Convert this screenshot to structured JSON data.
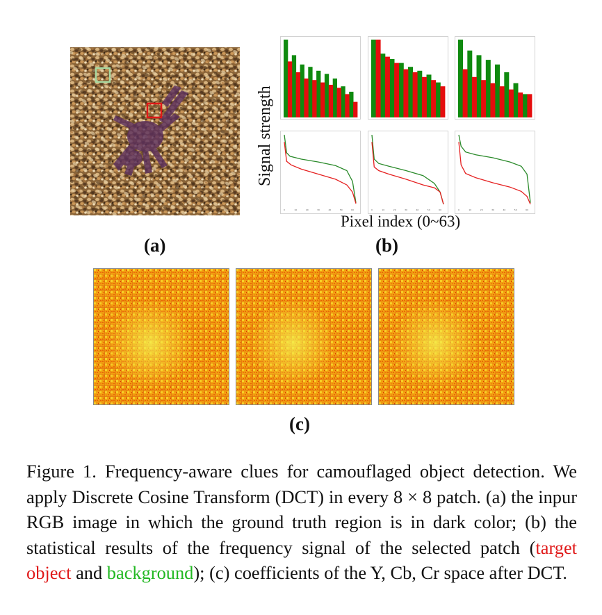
{
  "labels": {
    "a": "(a)",
    "b": "(b)",
    "c": "(c)"
  },
  "axes": {
    "y": "Signal strength",
    "x": "Pixel index (0~63)"
  },
  "colors": {
    "target": "#e01818",
    "background": "#22b822",
    "bar_green": "#0f8a0f",
    "bar_red": "#e50d0d",
    "line_green": "#2a8a2a",
    "line_red": "#e52020"
  },
  "chart_data": [
    {
      "type": "bar",
      "series": [
        {
          "name": "background",
          "values": [
            1.0,
            0.8,
            0.68,
            0.65,
            0.6,
            0.56,
            0.5,
            0.4,
            0.33
          ]
        },
        {
          "name": "target object",
          "values": [
            0.72,
            0.58,
            0.5,
            0.48,
            0.45,
            0.42,
            0.38,
            0.3,
            0.2
          ]
        }
      ]
    },
    {
      "type": "bar",
      "series": [
        {
          "name": "background",
          "values": [
            1.0,
            0.82,
            0.75,
            0.7,
            0.65,
            0.6,
            0.55,
            0.45
          ]
        },
        {
          "name": "target object",
          "values": [
            1.0,
            0.78,
            0.7,
            0.62,
            0.58,
            0.52,
            0.48,
            0.4
          ]
        }
      ]
    },
    {
      "type": "bar",
      "series": [
        {
          "name": "background",
          "values": [
            1.0,
            0.86,
            0.8,
            0.74,
            0.68,
            0.58,
            0.44,
            0.3
          ]
        },
        {
          "name": "target object",
          "values": [
            0.62,
            0.52,
            0.48,
            0.44,
            0.4,
            0.36,
            0.32,
            0.3
          ]
        }
      ]
    },
    {
      "type": "line",
      "x_ticks": [
        "0",
        "10",
        "20",
        "30",
        "40",
        "50",
        "60"
      ],
      "series": [
        {
          "name": "background",
          "values": [
            [
              0,
              1.0
            ],
            [
              2,
              0.75
            ],
            [
              5,
              0.7
            ],
            [
              15,
              0.66
            ],
            [
              30,
              0.62
            ],
            [
              45,
              0.57
            ],
            [
              55,
              0.5
            ],
            [
              60,
              0.35
            ],
            [
              63,
              0.05
            ]
          ]
        },
        {
          "name": "target object",
          "values": [
            [
              0,
              0.9
            ],
            [
              2,
              0.63
            ],
            [
              6,
              0.58
            ],
            [
              15,
              0.52
            ],
            [
              30,
              0.45
            ],
            [
              45,
              0.38
            ],
            [
              55,
              0.3
            ],
            [
              60,
              0.2
            ],
            [
              63,
              0.04
            ]
          ]
        }
      ]
    },
    {
      "type": "line",
      "x_ticks": [
        "0",
        "10",
        "20",
        "30",
        "40",
        "50",
        "60"
      ],
      "series": [
        {
          "name": "background",
          "values": [
            [
              0,
              1.0
            ],
            [
              2,
              0.66
            ],
            [
              6,
              0.6
            ],
            [
              15,
              0.56
            ],
            [
              30,
              0.5
            ],
            [
              45,
              0.43
            ],
            [
              55,
              0.32
            ],
            [
              60,
              0.2
            ],
            [
              63,
              0.03
            ]
          ]
        },
        {
          "name": "target object",
          "values": [
            [
              0,
              0.9
            ],
            [
              2,
              0.55
            ],
            [
              6,
              0.5
            ],
            [
              15,
              0.45
            ],
            [
              30,
              0.38
            ],
            [
              45,
              0.3
            ],
            [
              55,
              0.26
            ],
            [
              60,
              0.2
            ],
            [
              63,
              0.03
            ]
          ]
        }
      ]
    },
    {
      "type": "line",
      "x_ticks": [
        "0",
        "10",
        "20",
        "30",
        "40",
        "50",
        "60"
      ],
      "series": [
        {
          "name": "background",
          "values": [
            [
              0,
              1.0
            ],
            [
              2,
              0.84
            ],
            [
              6,
              0.76
            ],
            [
              15,
              0.72
            ],
            [
              30,
              0.68
            ],
            [
              45,
              0.62
            ],
            [
              55,
              0.56
            ],
            [
              60,
              0.45
            ],
            [
              63,
              0.05
            ]
          ]
        },
        {
          "name": "target object",
          "values": [
            [
              0,
              0.9
            ],
            [
              2,
              0.58
            ],
            [
              6,
              0.46
            ],
            [
              15,
              0.4
            ],
            [
              30,
              0.33
            ],
            [
              45,
              0.27
            ],
            [
              55,
              0.21
            ],
            [
              60,
              0.14
            ],
            [
              63,
              0.03
            ]
          ]
        }
      ]
    }
  ],
  "caption": {
    "part1": "Figure 1. Frequency-aware clues for camouflaged object detection. We apply Discrete Cosine Transform (DCT) in every 8 × 8 patch. (a) the inpur RGB image in which the ground truth region is in dark color; (b) the statistical results of the frequency signal of the selected patch (",
    "target": "target object",
    "and": " and ",
    "background": "background",
    "part2": "); (c) coefficients of the Y, Cb, Cr space after DCT."
  }
}
